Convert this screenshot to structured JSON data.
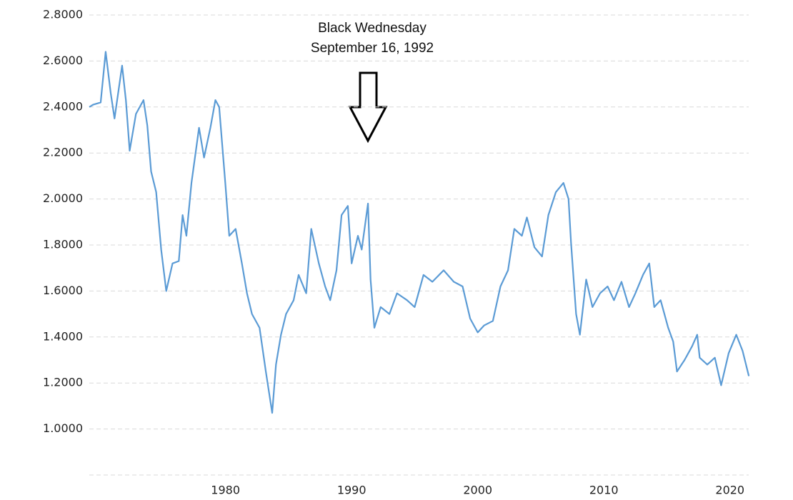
{
  "chart_data": {
    "type": "line",
    "annotations": [
      "Black Wednesday",
      "September 16, 1992"
    ],
    "x": [
      1969.2,
      1969.5,
      1970.1,
      1970.5,
      1970.9,
      1971.2,
      1971.8,
      1972.1,
      1972.4,
      1972.9,
      1973.5,
      1973.8,
      1974.1,
      1974.5,
      1974.9,
      1975.3,
      1975.8,
      1976.3,
      1976.6,
      1976.9,
      1977.3,
      1977.9,
      1978.3,
      1978.8,
      1979.2,
      1979.5,
      1980.0,
      1980.3,
      1980.8,
      1981.3,
      1981.7,
      1982.1,
      1982.7,
      1983.2,
      1983.7,
      1984.0,
      1984.4,
      1984.8,
      1985.4,
      1985.8,
      1986.4,
      1986.8,
      1987.4,
      1987.9,
      1988.3,
      1988.8,
      1989.2,
      1989.7,
      1990.0,
      1990.5,
      1990.8,
      1991.3,
      1991.5,
      1991.8,
      1992.3,
      1993.0,
      1993.6,
      1994.4,
      1995.0,
      1995.7,
      1996.4,
      1997.3,
      1998.1,
      1998.8,
      1999.4,
      2000.0,
      2000.5,
      2001.2,
      2001.8,
      2002.4,
      2002.9,
      2003.5,
      2003.9,
      2004.5,
      2005.1,
      2005.6,
      2006.2,
      2006.8,
      2007.2,
      2007.4,
      2007.8,
      2008.1,
      2008.6,
      2009.1,
      2009.7,
      2010.3,
      2010.8,
      2011.4,
      2012.0,
      2012.5,
      2013.1,
      2013.6,
      2014.0,
      2014.5,
      2015.1,
      2015.5,
      2015.8,
      2016.4,
      2017.0,
      2017.4,
      2017.6,
      2018.2,
      2018.8,
      2019.3,
      2019.9,
      2020.5,
      2021.0,
      2021.5
    ],
    "values": [
      2.4,
      2.41,
      2.42,
      2.64,
      2.46,
      2.35,
      2.58,
      2.43,
      2.21,
      2.37,
      2.43,
      2.32,
      2.12,
      2.03,
      1.78,
      1.6,
      1.72,
      1.73,
      1.93,
      1.84,
      2.07,
      2.31,
      2.18,
      2.31,
      2.43,
      2.4,
      2.06,
      1.84,
      1.87,
      1.72,
      1.59,
      1.5,
      1.44,
      1.25,
      1.07,
      1.28,
      1.41,
      1.5,
      1.56,
      1.67,
      1.59,
      1.87,
      1.72,
      1.62,
      1.56,
      1.69,
      1.93,
      1.97,
      1.72,
      1.84,
      1.78,
      1.98,
      1.65,
      1.44,
      1.53,
      1.5,
      1.59,
      1.56,
      1.53,
      1.67,
      1.64,
      1.69,
      1.64,
      1.62,
      1.48,
      1.42,
      1.45,
      1.47,
      1.62,
      1.69,
      1.87,
      1.84,
      1.92,
      1.79,
      1.75,
      1.93,
      2.03,
      2.07,
      2.0,
      1.81,
      1.5,
      1.41,
      1.65,
      1.53,
      1.59,
      1.62,
      1.56,
      1.64,
      1.53,
      1.59,
      1.67,
      1.72,
      1.53,
      1.56,
      1.44,
      1.38,
      1.25,
      1.3,
      1.36,
      1.41,
      1.31,
      1.28,
      1.31,
      1.19,
      1.33,
      1.41,
      1.34,
      1.23
    ],
    "color": "#5b9bd5",
    "xlim": [
      1969.2,
      2021.6
    ],
    "xticks": [
      1980,
      1990,
      2000,
      2010,
      2020
    ],
    "ylim": [
      0.8,
      2.8
    ],
    "yticks": [
      {
        "value": 1.0,
        "label": "1.0000"
      },
      {
        "value": 1.2,
        "label": "1.2000"
      },
      {
        "value": 1.4,
        "label": "1.4000"
      },
      {
        "value": 1.6,
        "label": "1.6000"
      },
      {
        "value": 1.8,
        "label": "1.8000"
      },
      {
        "value": 2.0,
        "label": "2.0000"
      },
      {
        "value": 2.2,
        "label": "2.2000"
      },
      {
        "value": 2.4,
        "label": "2.4000"
      },
      {
        "value": 2.6,
        "label": "2.6000"
      },
      {
        "value": 2.8,
        "label": "2.8000"
      }
    ],
    "grid": true
  }
}
